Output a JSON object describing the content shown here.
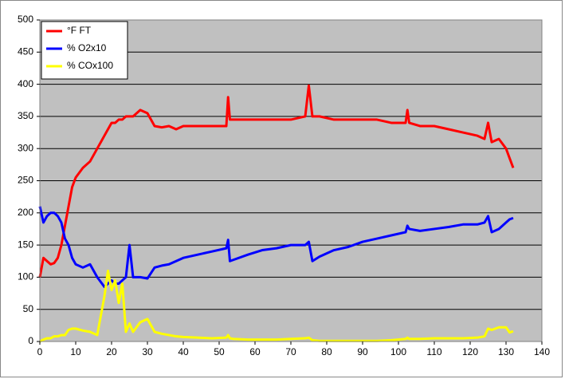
{
  "chart_data": {
    "type": "line",
    "x": [
      0,
      1,
      2,
      3,
      4,
      5,
      6,
      7,
      8,
      9,
      10,
      12,
      14,
      16,
      18,
      19,
      20,
      21,
      22,
      23,
      24,
      25,
      26,
      28,
      30,
      32,
      34,
      36,
      38,
      40,
      44,
      48,
      52,
      52.5,
      53,
      54,
      58,
      62,
      66,
      70,
      74,
      75,
      76,
      78,
      82,
      86,
      90,
      94,
      98,
      102,
      102.5,
      103,
      106,
      110,
      114,
      118,
      122,
      124,
      125,
      126,
      128,
      130,
      131,
      132
    ],
    "series": [
      {
        "name": "°F FT",
        "color": "#ff0000",
        "values": [
          100,
          130,
          125,
          120,
          122,
          130,
          150,
          180,
          210,
          240,
          255,
          270,
          280,
          300,
          320,
          330,
          340,
          340,
          345,
          345,
          350,
          350,
          350,
          360,
          355,
          335,
          333,
          335,
          330,
          335,
          335,
          335,
          335,
          380,
          345,
          345,
          345,
          345,
          345,
          345,
          350,
          398,
          350,
          350,
          345,
          345,
          345,
          345,
          340,
          340,
          360,
          340,
          335,
          335,
          330,
          325,
          320,
          315,
          340,
          310,
          315,
          300,
          285,
          270
        ]
      },
      {
        "name": "% O2x10",
        "color": "#0000ff",
        "values": [
          210,
          185,
          195,
          200,
          200,
          195,
          185,
          160,
          150,
          130,
          120,
          115,
          120,
          100,
          85,
          90,
          95,
          90,
          90,
          95,
          100,
          150,
          100,
          100,
          98,
          115,
          118,
          120,
          125,
          130,
          135,
          140,
          145,
          158,
          125,
          127,
          135,
          142,
          145,
          150,
          150,
          155,
          125,
          132,
          142,
          147,
          155,
          160,
          165,
          170,
          180,
          175,
          172,
          175,
          178,
          182,
          182,
          185,
          195,
          170,
          175,
          185,
          190,
          192
        ]
      },
      {
        "name": "% COx100",
        "color": "#ffff00",
        "values": [
          0,
          3,
          5,
          5,
          8,
          8,
          10,
          10,
          18,
          20,
          20,
          17,
          15,
          10,
          70,
          110,
          80,
          95,
          60,
          90,
          15,
          28,
          15,
          30,
          35,
          15,
          12,
          10,
          8,
          7,
          6,
          5,
          6,
          10,
          5,
          4,
          3,
          3,
          3,
          4,
          5,
          6,
          2,
          1,
          1,
          1,
          1,
          1,
          2,
          4,
          6,
          4,
          4,
          5,
          5,
          5,
          6,
          8,
          20,
          18,
          22,
          22,
          14,
          16
        ]
      }
    ],
    "xlim": [
      0,
      140
    ],
    "xticks": [
      0,
      10,
      20,
      30,
      40,
      50,
      60,
      70,
      80,
      90,
      100,
      110,
      120,
      130,
      140
    ],
    "ylim": [
      0,
      500
    ],
    "yticks": [
      0,
      50,
      100,
      150,
      200,
      250,
      300,
      350,
      400,
      450,
      500
    ],
    "grid": true,
    "legend": "upper left"
  }
}
